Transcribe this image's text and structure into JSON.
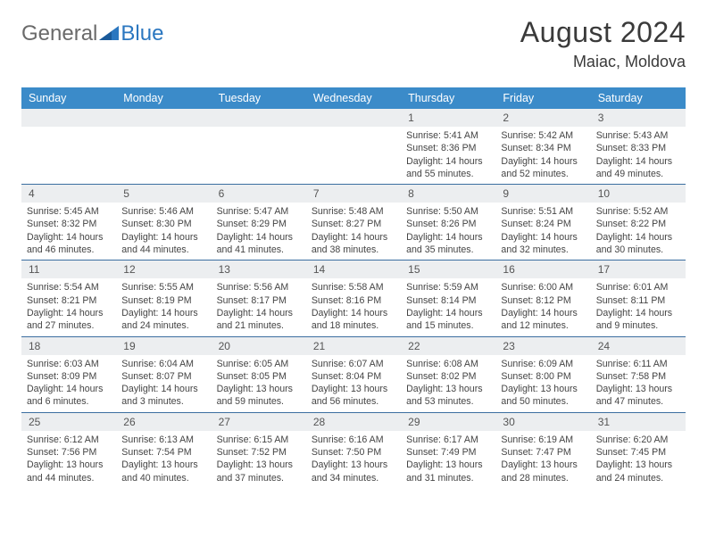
{
  "logo": {
    "general": "General",
    "blue": "Blue"
  },
  "title": "August 2024",
  "location": "Maiac, Moldova",
  "colors": {
    "header_bg": "#3b8bc9",
    "header_text": "#ffffff",
    "row_divider": "#3b6ea0",
    "daynum_bg": "#eceef0",
    "daynum_text": "#555555",
    "info_text": "#444444",
    "title_text": "#3a3a3a",
    "logo_general": "#6a6a6a",
    "logo_blue": "#2b77c0"
  },
  "dayHeaders": [
    "Sunday",
    "Monday",
    "Tuesday",
    "Wednesday",
    "Thursday",
    "Friday",
    "Saturday"
  ],
  "weeks": [
    [
      {
        "blank": true
      },
      {
        "blank": true
      },
      {
        "blank": true
      },
      {
        "blank": true
      },
      {
        "num": "1",
        "sunrise": "Sunrise: 5:41 AM",
        "sunset": "Sunset: 8:36 PM",
        "day1": "Daylight: 14 hours",
        "day2": "and 55 minutes."
      },
      {
        "num": "2",
        "sunrise": "Sunrise: 5:42 AM",
        "sunset": "Sunset: 8:34 PM",
        "day1": "Daylight: 14 hours",
        "day2": "and 52 minutes."
      },
      {
        "num": "3",
        "sunrise": "Sunrise: 5:43 AM",
        "sunset": "Sunset: 8:33 PM",
        "day1": "Daylight: 14 hours",
        "day2": "and 49 minutes."
      }
    ],
    [
      {
        "num": "4",
        "sunrise": "Sunrise: 5:45 AM",
        "sunset": "Sunset: 8:32 PM",
        "day1": "Daylight: 14 hours",
        "day2": "and 46 minutes."
      },
      {
        "num": "5",
        "sunrise": "Sunrise: 5:46 AM",
        "sunset": "Sunset: 8:30 PM",
        "day1": "Daylight: 14 hours",
        "day2": "and 44 minutes."
      },
      {
        "num": "6",
        "sunrise": "Sunrise: 5:47 AM",
        "sunset": "Sunset: 8:29 PM",
        "day1": "Daylight: 14 hours",
        "day2": "and 41 minutes."
      },
      {
        "num": "7",
        "sunrise": "Sunrise: 5:48 AM",
        "sunset": "Sunset: 8:27 PM",
        "day1": "Daylight: 14 hours",
        "day2": "and 38 minutes."
      },
      {
        "num": "8",
        "sunrise": "Sunrise: 5:50 AM",
        "sunset": "Sunset: 8:26 PM",
        "day1": "Daylight: 14 hours",
        "day2": "and 35 minutes."
      },
      {
        "num": "9",
        "sunrise": "Sunrise: 5:51 AM",
        "sunset": "Sunset: 8:24 PM",
        "day1": "Daylight: 14 hours",
        "day2": "and 32 minutes."
      },
      {
        "num": "10",
        "sunrise": "Sunrise: 5:52 AM",
        "sunset": "Sunset: 8:22 PM",
        "day1": "Daylight: 14 hours",
        "day2": "and 30 minutes."
      }
    ],
    [
      {
        "num": "11",
        "sunrise": "Sunrise: 5:54 AM",
        "sunset": "Sunset: 8:21 PM",
        "day1": "Daylight: 14 hours",
        "day2": "and 27 minutes."
      },
      {
        "num": "12",
        "sunrise": "Sunrise: 5:55 AM",
        "sunset": "Sunset: 8:19 PM",
        "day1": "Daylight: 14 hours",
        "day2": "and 24 minutes."
      },
      {
        "num": "13",
        "sunrise": "Sunrise: 5:56 AM",
        "sunset": "Sunset: 8:17 PM",
        "day1": "Daylight: 14 hours",
        "day2": "and 21 minutes."
      },
      {
        "num": "14",
        "sunrise": "Sunrise: 5:58 AM",
        "sunset": "Sunset: 8:16 PM",
        "day1": "Daylight: 14 hours",
        "day2": "and 18 minutes."
      },
      {
        "num": "15",
        "sunrise": "Sunrise: 5:59 AM",
        "sunset": "Sunset: 8:14 PM",
        "day1": "Daylight: 14 hours",
        "day2": "and 15 minutes."
      },
      {
        "num": "16",
        "sunrise": "Sunrise: 6:00 AM",
        "sunset": "Sunset: 8:12 PM",
        "day1": "Daylight: 14 hours",
        "day2": "and 12 minutes."
      },
      {
        "num": "17",
        "sunrise": "Sunrise: 6:01 AM",
        "sunset": "Sunset: 8:11 PM",
        "day1": "Daylight: 14 hours",
        "day2": "and 9 minutes."
      }
    ],
    [
      {
        "num": "18",
        "sunrise": "Sunrise: 6:03 AM",
        "sunset": "Sunset: 8:09 PM",
        "day1": "Daylight: 14 hours",
        "day2": "and 6 minutes."
      },
      {
        "num": "19",
        "sunrise": "Sunrise: 6:04 AM",
        "sunset": "Sunset: 8:07 PM",
        "day1": "Daylight: 14 hours",
        "day2": "and 3 minutes."
      },
      {
        "num": "20",
        "sunrise": "Sunrise: 6:05 AM",
        "sunset": "Sunset: 8:05 PM",
        "day1": "Daylight: 13 hours",
        "day2": "and 59 minutes."
      },
      {
        "num": "21",
        "sunrise": "Sunrise: 6:07 AM",
        "sunset": "Sunset: 8:04 PM",
        "day1": "Daylight: 13 hours",
        "day2": "and 56 minutes."
      },
      {
        "num": "22",
        "sunrise": "Sunrise: 6:08 AM",
        "sunset": "Sunset: 8:02 PM",
        "day1": "Daylight: 13 hours",
        "day2": "and 53 minutes."
      },
      {
        "num": "23",
        "sunrise": "Sunrise: 6:09 AM",
        "sunset": "Sunset: 8:00 PM",
        "day1": "Daylight: 13 hours",
        "day2": "and 50 minutes."
      },
      {
        "num": "24",
        "sunrise": "Sunrise: 6:11 AM",
        "sunset": "Sunset: 7:58 PM",
        "day1": "Daylight: 13 hours",
        "day2": "and 47 minutes."
      }
    ],
    [
      {
        "num": "25",
        "sunrise": "Sunrise: 6:12 AM",
        "sunset": "Sunset: 7:56 PM",
        "day1": "Daylight: 13 hours",
        "day2": "and 44 minutes."
      },
      {
        "num": "26",
        "sunrise": "Sunrise: 6:13 AM",
        "sunset": "Sunset: 7:54 PM",
        "day1": "Daylight: 13 hours",
        "day2": "and 40 minutes."
      },
      {
        "num": "27",
        "sunrise": "Sunrise: 6:15 AM",
        "sunset": "Sunset: 7:52 PM",
        "day1": "Daylight: 13 hours",
        "day2": "and 37 minutes."
      },
      {
        "num": "28",
        "sunrise": "Sunrise: 6:16 AM",
        "sunset": "Sunset: 7:50 PM",
        "day1": "Daylight: 13 hours",
        "day2": "and 34 minutes."
      },
      {
        "num": "29",
        "sunrise": "Sunrise: 6:17 AM",
        "sunset": "Sunset: 7:49 PM",
        "day1": "Daylight: 13 hours",
        "day2": "and 31 minutes."
      },
      {
        "num": "30",
        "sunrise": "Sunrise: 6:19 AM",
        "sunset": "Sunset: 7:47 PM",
        "day1": "Daylight: 13 hours",
        "day2": "and 28 minutes."
      },
      {
        "num": "31",
        "sunrise": "Sunrise: 6:20 AM",
        "sunset": "Sunset: 7:45 PM",
        "day1": "Daylight: 13 hours",
        "day2": "and 24 minutes."
      }
    ]
  ]
}
